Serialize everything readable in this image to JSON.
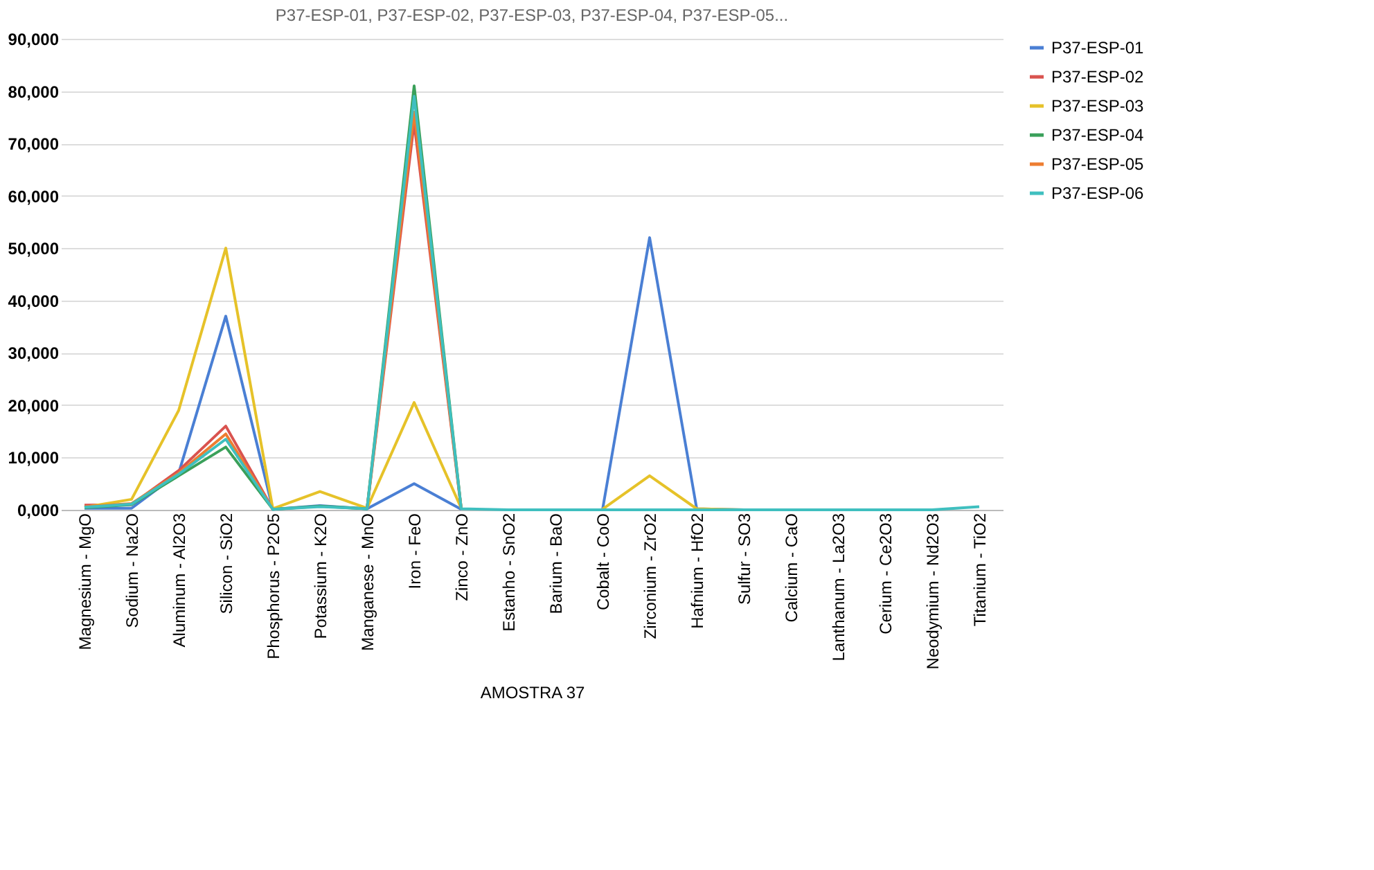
{
  "chart_data": {
    "type": "line",
    "title": "P37-ESP-01, P37-ESP-02, P37-ESP-03, P37-ESP-04, P37-ESP-05...",
    "xlabel": "AMOSTRA 37",
    "categories": [
      "Magnesium - MgO",
      "Sodium - Na2O",
      "Aluminum - Al2O3",
      "Silicon - SiO2",
      "Phosphorus - P2O5",
      "Potassium - K2O",
      "Manganese - MnO",
      "Iron - FeO",
      "Zinco - ZnO",
      "Estanho - SnO2",
      "Barium - BaO",
      "Cobalt - CoO",
      "Zirconium - ZrO2",
      "Hafnium - HfO2",
      "Sulfur - SO3",
      "Calcium - CaO",
      "Lanthanum - La2O3",
      "Cerium - Ce2O3",
      "Neodymium - Nd2O3",
      "Titanium - TiO2"
    ],
    "series": [
      {
        "name": "P37-ESP-01",
        "color": "#4a7fd4",
        "values": [
          300,
          300,
          7000,
          37000,
          100,
          800,
          200,
          5000,
          100,
          null,
          null,
          0,
          52000,
          200,
          0,
          null,
          null,
          null,
          null,
          null
        ]
      },
      {
        "name": "P37-ESP-02",
        "color": "#d9534f",
        "values": [
          900,
          1000,
          7500,
          16000,
          100,
          null,
          200,
          74000,
          200,
          null,
          null,
          null,
          null,
          null,
          null,
          null,
          null,
          null,
          null,
          null
        ]
      },
      {
        "name": "P37-ESP-03",
        "color": "#e6c229",
        "values": [
          500,
          2000,
          19000,
          50000,
          200,
          3500,
          300,
          20500,
          300,
          null,
          null,
          100,
          6500,
          200,
          0,
          null,
          null,
          null,
          null,
          null
        ]
      },
      {
        "name": "P37-ESP-04",
        "color": "#3aa05a",
        "values": [
          400,
          1000,
          6500,
          12000,
          100,
          700,
          200,
          81000,
          200,
          null,
          null,
          null,
          null,
          null,
          null,
          null,
          null,
          null,
          null,
          null
        ]
      },
      {
        "name": "P37-ESP-05",
        "color": "#ed7d31",
        "values": [
          600,
          1200,
          7000,
          14500,
          100,
          null,
          200,
          76000,
          200,
          null,
          null,
          null,
          null,
          null,
          null,
          null,
          null,
          null,
          null,
          null
        ]
      },
      {
        "name": "P37-ESP-06",
        "color": "#3fbfbf",
        "values": [
          500,
          1100,
          6800,
          13500,
          100,
          600,
          200,
          79000,
          200,
          0,
          0,
          0,
          0,
          0,
          0,
          0,
          0,
          0,
          0,
          600
        ]
      }
    ],
    "ylim": [
      0,
      90000
    ],
    "yticks": [
      {
        "value": 0,
        "label": "0,000"
      },
      {
        "value": 10000,
        "label": "10,000"
      },
      {
        "value": 20000,
        "label": "20,000"
      },
      {
        "value": 30000,
        "label": "30,000"
      },
      {
        "value": 40000,
        "label": "40,000"
      },
      {
        "value": 50000,
        "label": "50,000"
      },
      {
        "value": 60000,
        "label": "60,000"
      },
      {
        "value": 70000,
        "label": "70,000"
      },
      {
        "value": 80000,
        "label": "80,000"
      },
      {
        "value": 90000,
        "label": "90,000"
      }
    ],
    "grid": "y",
    "legend": "right",
    "marker": "none",
    "line_style": "solid"
  }
}
